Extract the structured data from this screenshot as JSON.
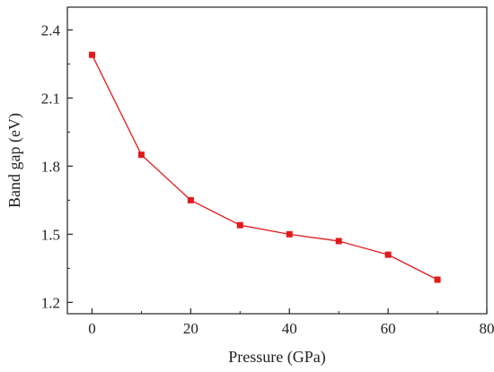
{
  "chart_data": {
    "type": "line",
    "title": "",
    "xlabel": "Pressure (GPa)",
    "ylabel": "Band gap (eV)",
    "xlim": [
      -5,
      80
    ],
    "ylim": [
      1.15,
      2.5
    ],
    "x_ticks": [
      0,
      20,
      40,
      60,
      80
    ],
    "y_ticks": [
      1.2,
      1.5,
      1.8,
      2.1,
      2.4
    ],
    "x_tick_labels": [
      "0",
      "20",
      "40",
      "60",
      "80"
    ],
    "y_tick_labels": [
      "1.2",
      "1.5",
      "1.8",
      "2.1",
      "2.4"
    ],
    "grid": false,
    "series": [
      {
        "color": "#e31a1c",
        "marker": "square",
        "x": [
          0,
          10,
          20,
          30,
          40,
          50,
          60,
          70
        ],
        "y": [
          2.29,
          1.85,
          1.65,
          1.54,
          1.5,
          1.47,
          1.41,
          1.3
        ]
      }
    ]
  }
}
